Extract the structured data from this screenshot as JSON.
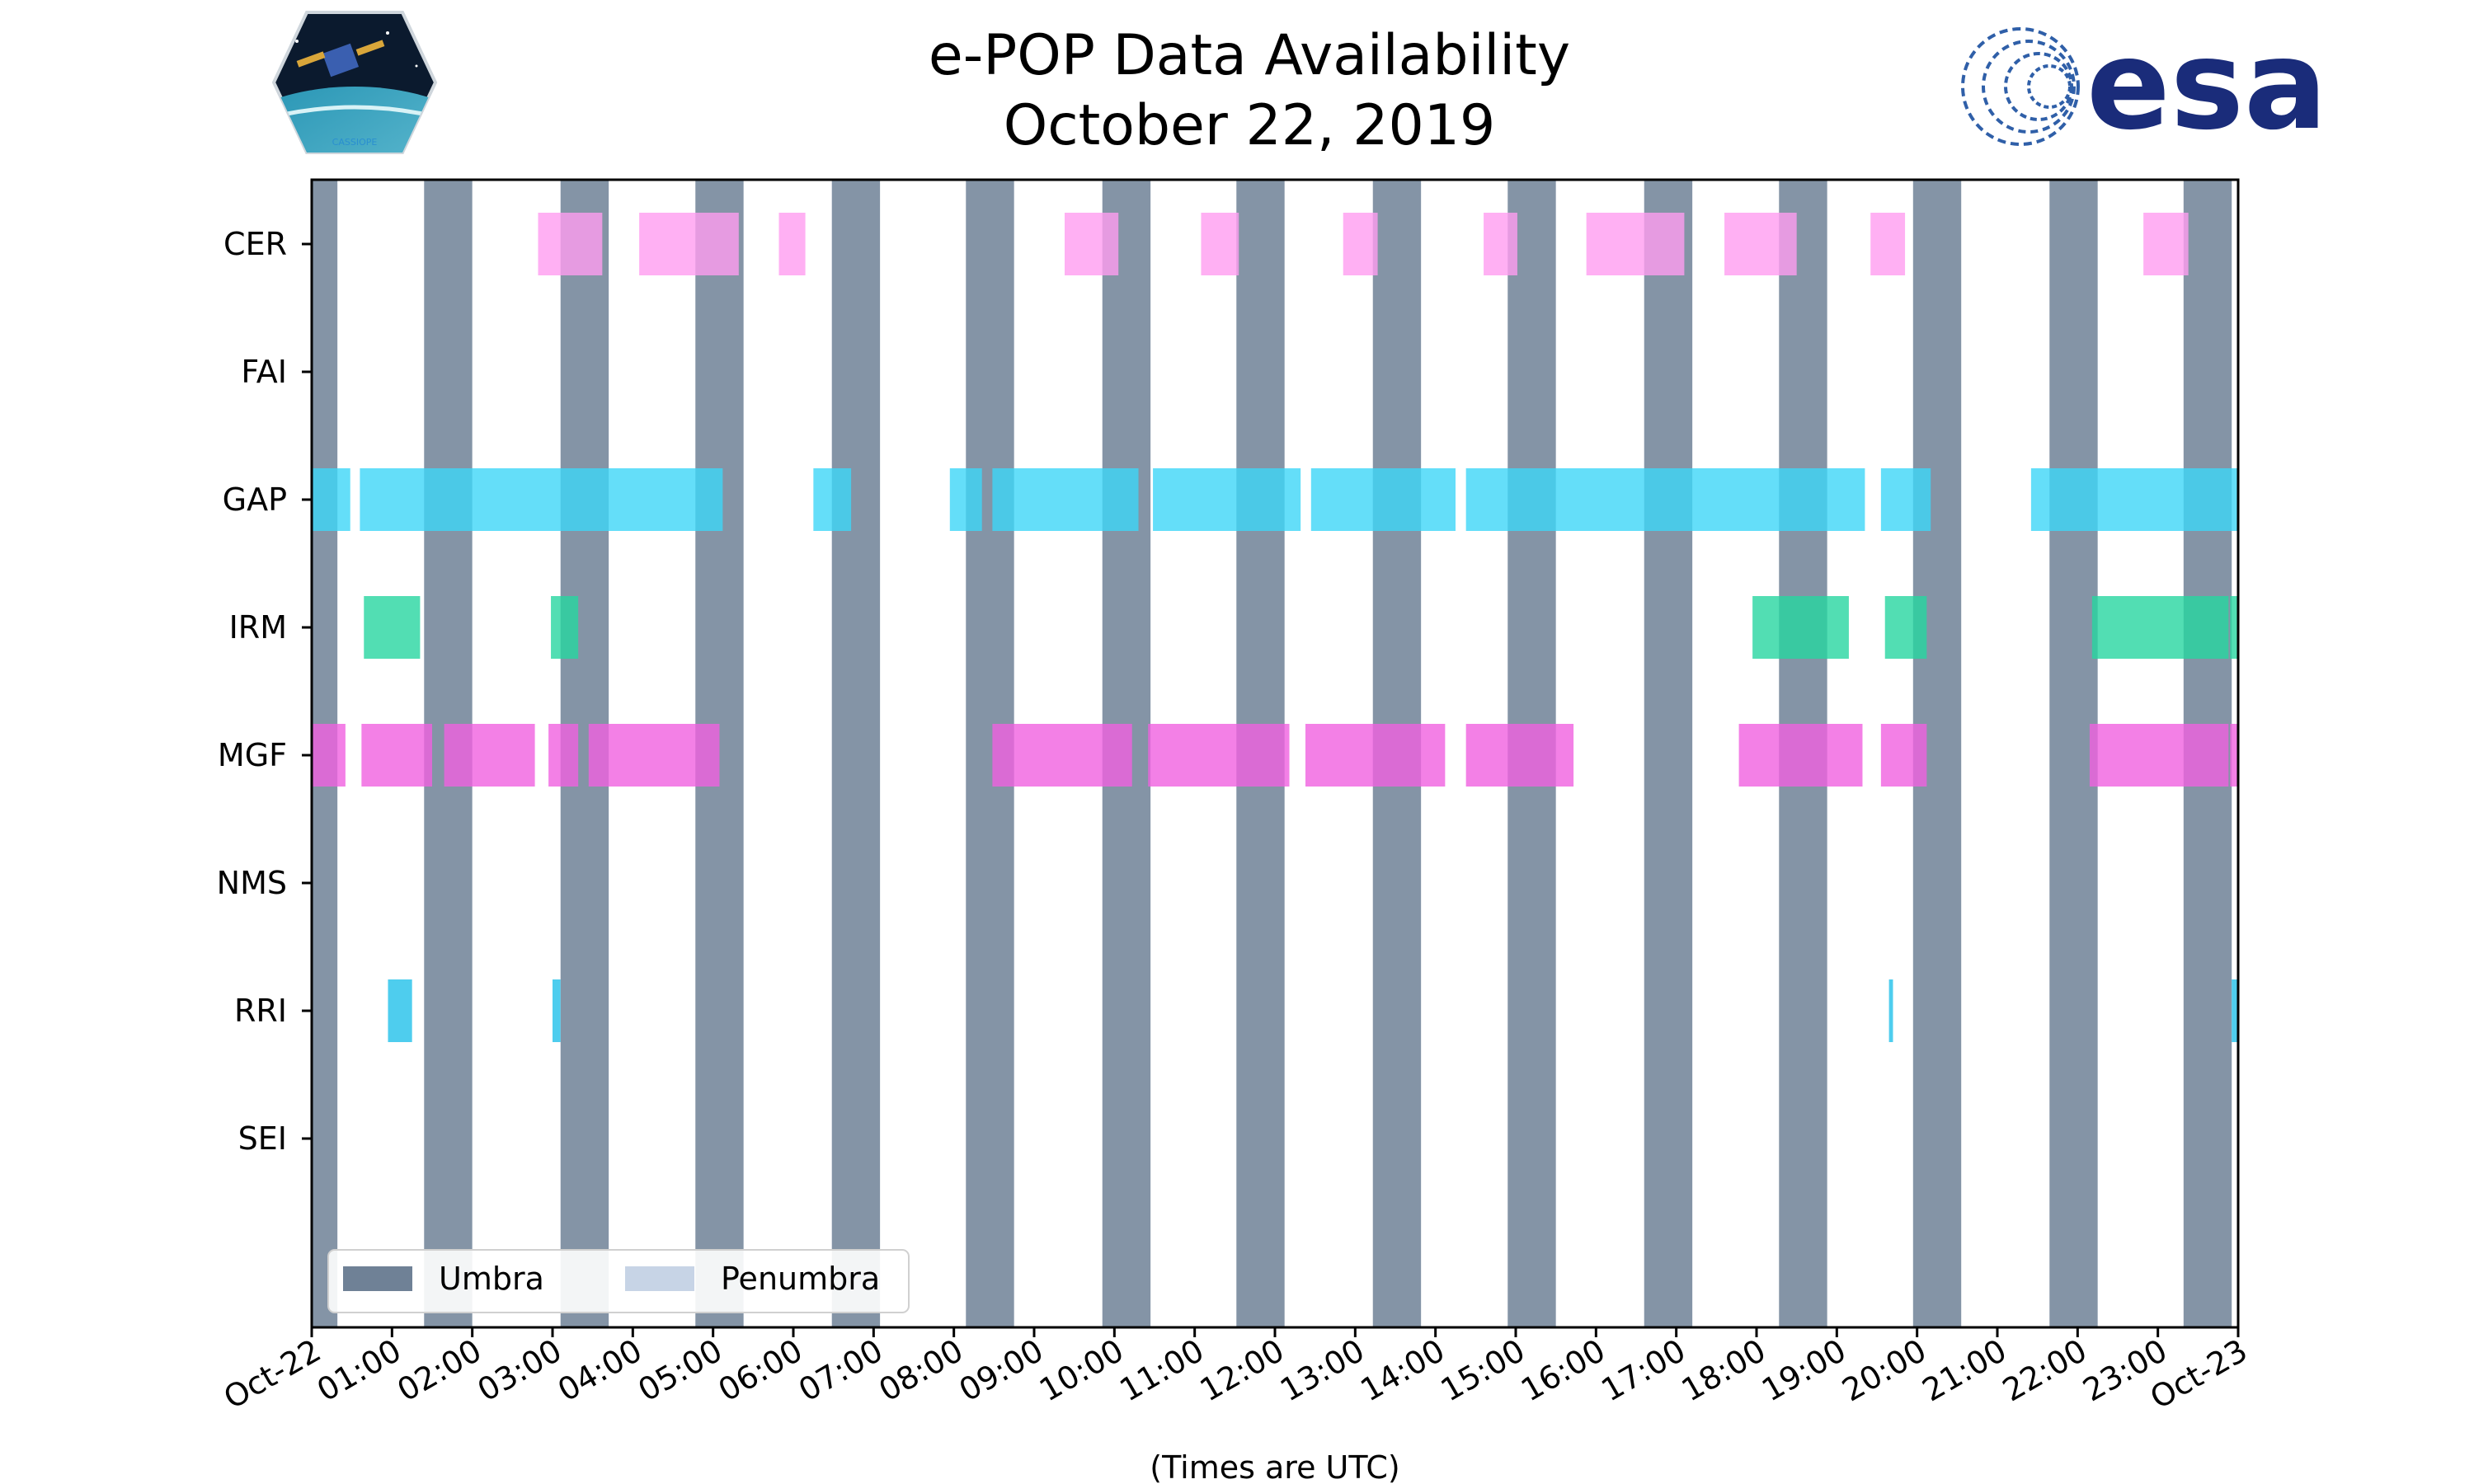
{
  "chart_data": {
    "type": "timeline",
    "title": [
      "e-POP Data Availability",
      "October 22, 2019"
    ],
    "xlabel": "(Times are UTC)",
    "x_range_hours": [
      0,
      24
    ],
    "x_ticks": [
      {
        "hour": 0,
        "label": "Oct-22"
      },
      {
        "hour": 1,
        "label": "01:00"
      },
      {
        "hour": 2,
        "label": "02:00"
      },
      {
        "hour": 3,
        "label": "03:00"
      },
      {
        "hour": 4,
        "label": "04:00"
      },
      {
        "hour": 5,
        "label": "05:00"
      },
      {
        "hour": 6,
        "label": "06:00"
      },
      {
        "hour": 7,
        "label": "07:00"
      },
      {
        "hour": 8,
        "label": "08:00"
      },
      {
        "hour": 9,
        "label": "09:00"
      },
      {
        "hour": 10,
        "label": "10:00"
      },
      {
        "hour": 11,
        "label": "11:00"
      },
      {
        "hour": 12,
        "label": "12:00"
      },
      {
        "hour": 13,
        "label": "13:00"
      },
      {
        "hour": 14,
        "label": "14:00"
      },
      {
        "hour": 15,
        "label": "15:00"
      },
      {
        "hour": 16,
        "label": "16:00"
      },
      {
        "hour": 17,
        "label": "17:00"
      },
      {
        "hour": 18,
        "label": "18:00"
      },
      {
        "hour": 19,
        "label": "19:00"
      },
      {
        "hour": 20,
        "label": "20:00"
      },
      {
        "hour": 21,
        "label": "21:00"
      },
      {
        "hour": 22,
        "label": "22:00"
      },
      {
        "hour": 23,
        "label": "23:00"
      },
      {
        "hour": 24,
        "label": "Oct-23"
      }
    ],
    "instruments": [
      {
        "name": "CER",
        "color": "#ff9cf0",
        "intervals": [
          [
            2.82,
            3.62
          ],
          [
            4.08,
            5.32
          ],
          [
            5.82,
            6.15
          ],
          [
            9.38,
            10.05
          ],
          [
            11.08,
            11.55
          ],
          [
            12.85,
            13.28
          ],
          [
            14.6,
            15.02
          ],
          [
            15.88,
            17.1
          ],
          [
            17.6,
            18.5
          ],
          [
            19.42,
            19.85
          ],
          [
            22.82,
            23.38
          ]
        ]
      },
      {
        "name": "FAI",
        "color": "#cccccc",
        "intervals": []
      },
      {
        "name": "GAP",
        "color": "#3dd6f8",
        "intervals": [
          [
            0.0,
            0.48
          ],
          [
            0.6,
            5.12
          ],
          [
            6.25,
            6.72
          ],
          [
            7.95,
            8.35
          ],
          [
            8.48,
            10.3
          ],
          [
            10.48,
            12.32
          ],
          [
            12.45,
            14.25
          ],
          [
            14.38,
            19.35
          ],
          [
            19.55,
            20.17
          ],
          [
            21.42,
            24.0
          ]
        ]
      },
      {
        "name": "IRM",
        "color": "#27d6a0",
        "intervals": [
          [
            0.65,
            1.35
          ],
          [
            2.98,
            3.32
          ],
          [
            17.95,
            19.15
          ],
          [
            19.6,
            20.12
          ],
          [
            22.18,
            23.88
          ],
          [
            23.9,
            24.0
          ]
        ]
      },
      {
        "name": "MGF",
        "color": "#f060e0",
        "intervals": [
          [
            0.0,
            0.42
          ],
          [
            0.62,
            1.5
          ],
          [
            1.65,
            2.78
          ],
          [
            2.95,
            3.32
          ],
          [
            3.45,
            5.08
          ],
          [
            8.48,
            10.22
          ],
          [
            10.42,
            12.18
          ],
          [
            12.38,
            14.12
          ],
          [
            14.38,
            15.72
          ],
          [
            17.78,
            19.32
          ],
          [
            19.55,
            20.12
          ],
          [
            22.15,
            23.88
          ],
          [
            23.9,
            24.0
          ]
        ]
      },
      {
        "name": "NMS",
        "color": "#cccccc",
        "intervals": []
      },
      {
        "name": "RRI",
        "color": "#22c0ea",
        "intervals": [
          [
            0.95,
            1.25
          ],
          [
            3.0,
            3.1
          ],
          [
            19.65,
            19.7
          ],
          [
            23.92,
            24.0
          ]
        ]
      },
      {
        "name": "SEI",
        "color": "#cccccc",
        "intervals": []
      }
    ],
    "umbra_intervals": [
      [
        0.0,
        0.32
      ],
      [
        1.4,
        2.0
      ],
      [
        3.1,
        3.7
      ],
      [
        4.78,
        5.38
      ],
      [
        6.48,
        7.08
      ],
      [
        8.15,
        8.75
      ],
      [
        9.85,
        10.45
      ],
      [
        11.52,
        12.12
      ],
      [
        13.22,
        13.82
      ],
      [
        14.9,
        15.5
      ],
      [
        16.6,
        17.2
      ],
      [
        18.28,
        18.88
      ],
      [
        19.95,
        20.55
      ],
      [
        21.65,
        22.25
      ],
      [
        23.32,
        23.92
      ]
    ],
    "legend": {
      "position": "lower-left",
      "entries": [
        {
          "label": "Umbra",
          "color": "#6f8196"
        },
        {
          "label": "Penumbra",
          "color": "#c7d4e6"
        }
      ]
    }
  },
  "logos": {
    "left": {
      "label": "CASSIOPE"
    },
    "right": {
      "wordmark": "esa",
      "color": "#1a2c7a"
    }
  }
}
